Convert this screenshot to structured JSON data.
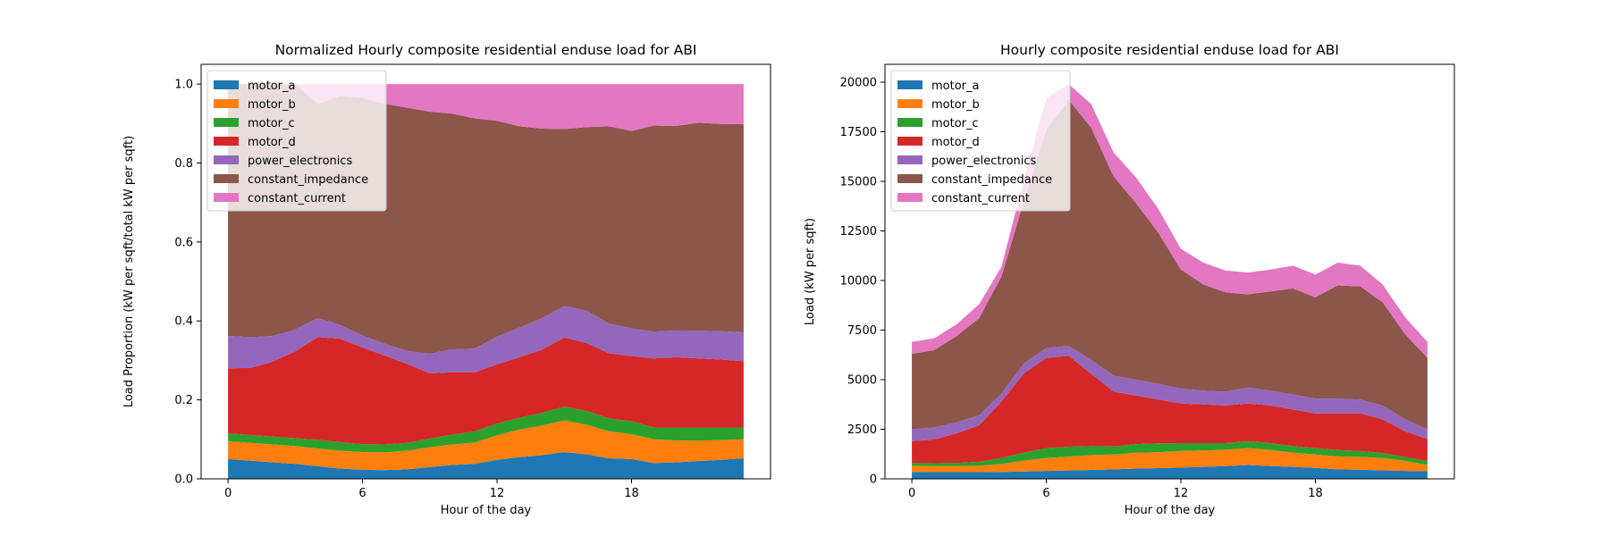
{
  "chart_data": [
    {
      "type": "area",
      "stacked": true,
      "title": "Normalized Hourly composite residential enduse load for ABI",
      "xlabel": "Hour of the day",
      "ylabel": "Load Proportion (kW per sqft/total kW per sqft)",
      "xlim": [
        -1.2,
        24.2
      ],
      "ylim": [
        0,
        1.05
      ],
      "xticks": [
        0,
        6,
        12,
        18
      ],
      "yticks": [
        0.0,
        0.2,
        0.4,
        0.6,
        0.8,
        1.0
      ],
      "ytick_labels": [
        "0.0",
        "0.2",
        "0.4",
        "0.6",
        "0.8",
        "1.0"
      ],
      "legend_position": "top-left",
      "x": [
        0,
        1,
        2,
        3,
        4,
        5,
        6,
        7,
        8,
        9,
        10,
        11,
        12,
        13,
        14,
        15,
        16,
        17,
        18,
        19,
        20,
        21,
        22,
        23
      ],
      "series": [
        {
          "name": "motor_a",
          "color": "#1f77b4",
          "values": [
            0.05,
            0.046,
            0.042,
            0.038,
            0.032,
            0.026,
            0.023,
            0.022,
            0.024,
            0.03,
            0.035,
            0.038,
            0.048,
            0.055,
            0.06,
            0.068,
            0.062,
            0.052,
            0.05,
            0.04,
            0.042,
            0.045,
            0.048,
            0.052
          ]
        },
        {
          "name": "motor_b",
          "color": "#ff7f0e",
          "values": [
            0.045,
            0.045,
            0.045,
            0.045,
            0.045,
            0.045,
            0.045,
            0.045,
            0.047,
            0.05,
            0.052,
            0.054,
            0.062,
            0.07,
            0.075,
            0.08,
            0.075,
            0.068,
            0.063,
            0.06,
            0.055,
            0.052,
            0.05,
            0.048
          ]
        },
        {
          "name": "motor_c",
          "color": "#2ca02c",
          "values": [
            0.02,
            0.02,
            0.02,
            0.02,
            0.022,
            0.022,
            0.02,
            0.02,
            0.02,
            0.022,
            0.025,
            0.028,
            0.03,
            0.03,
            0.032,
            0.035,
            0.035,
            0.033,
            0.033,
            0.03,
            0.033,
            0.033,
            0.032,
            0.03
          ]
        },
        {
          "name": "motor_d",
          "color": "#d62728",
          "values": [
            0.165,
            0.17,
            0.19,
            0.22,
            0.26,
            0.262,
            0.245,
            0.225,
            0.2,
            0.165,
            0.158,
            0.15,
            0.15,
            0.153,
            0.16,
            0.175,
            0.172,
            0.165,
            0.165,
            0.175,
            0.178,
            0.175,
            0.172,
            0.168
          ]
        },
        {
          "name": "power_electronics",
          "color": "#9467bd",
          "values": [
            0.082,
            0.078,
            0.065,
            0.055,
            0.048,
            0.035,
            0.03,
            0.03,
            0.033,
            0.05,
            0.058,
            0.06,
            0.07,
            0.075,
            0.08,
            0.08,
            0.082,
            0.075,
            0.07,
            0.068,
            0.068,
            0.07,
            0.072,
            0.073
          ]
        },
        {
          "name": "constant_impedance",
          "color": "#8c564b",
          "values": [
            0.638,
            0.641,
            0.638,
            0.622,
            0.543,
            0.58,
            0.602,
            0.608,
            0.616,
            0.613,
            0.597,
            0.583,
            0.547,
            0.51,
            0.48,
            0.448,
            0.465,
            0.5,
            0.5,
            0.522,
            0.518,
            0.527,
            0.525,
            0.527
          ]
        },
        {
          "name": "constant_current",
          "color": "#e377c2",
          "values": [
            0.0,
            0.0,
            0.0,
            0.0,
            0.05,
            0.03,
            0.035,
            0.05,
            0.06,
            0.07,
            0.075,
            0.087,
            0.093,
            0.107,
            0.113,
            0.114,
            0.109,
            0.107,
            0.119,
            0.105,
            0.106,
            0.098,
            0.101,
            0.102
          ]
        }
      ]
    },
    {
      "type": "area",
      "stacked": true,
      "title": "Hourly composite residential enduse load for ABI",
      "xlabel": "Hour of the day",
      "ylabel": "Load (kW per sqft)",
      "xlim": [
        -1.2,
        24.2
      ],
      "ylim": [
        0,
        20900
      ],
      "xticks": [
        0,
        6,
        12,
        18
      ],
      "yticks": [
        0,
        2500,
        5000,
        7500,
        10000,
        12500,
        15000,
        17500,
        20000
      ],
      "ytick_labels": [
        "0",
        "2500",
        "5000",
        "7500",
        "10000",
        "12500",
        "15000",
        "17500",
        "20000"
      ],
      "legend_position": "top-left",
      "x": [
        0,
        1,
        2,
        3,
        4,
        5,
        6,
        7,
        8,
        9,
        10,
        11,
        12,
        13,
        14,
        15,
        16,
        17,
        18,
        19,
        20,
        21,
        22,
        23
      ],
      "series": [
        {
          "name": "motor_a",
          "color": "#1f77b4",
          "values": [
            350,
            340,
            340,
            340,
            350,
            370,
            400,
            420,
            450,
            480,
            520,
            540,
            570,
            600,
            640,
            700,
            650,
            600,
            550,
            480,
            460,
            430,
            400,
            380
          ]
        },
        {
          "name": "motor_b",
          "color": "#ff7f0e",
          "values": [
            300,
            300,
            300,
            320,
            400,
            550,
            650,
            700,
            750,
            750,
            800,
            800,
            830,
            830,
            830,
            850,
            800,
            720,
            680,
            650,
            650,
            620,
            500,
            320
          ]
        },
        {
          "name": "motor_c",
          "color": "#2ca02c",
          "values": [
            150,
            150,
            160,
            200,
            300,
            400,
            500,
            500,
            450,
            400,
            430,
            450,
            400,
            370,
            330,
            350,
            350,
            330,
            320,
            320,
            290,
            250,
            200,
            200
          ]
        },
        {
          "name": "motor_d",
          "color": "#d62728",
          "values": [
            1100,
            1200,
            1500,
            1840,
            2850,
            4000,
            4550,
            4580,
            3650,
            2770,
            2450,
            2210,
            2000,
            1950,
            1900,
            1900,
            1900,
            1850,
            1750,
            1850,
            1900,
            1700,
            1300,
            1100
          ]
        },
        {
          "name": "power_electronics",
          "color": "#9467bd",
          "values": [
            600,
            600,
            550,
            500,
            400,
            500,
            500,
            500,
            700,
            800,
            800,
            800,
            750,
            700,
            700,
            800,
            750,
            750,
            750,
            750,
            700,
            700,
            600,
            500
          ]
        },
        {
          "name": "constant_impedance",
          "color": "#8c564b",
          "values": [
            3800,
            3900,
            4350,
            4900,
            5900,
            8200,
            11000,
            12400,
            11700,
            10050,
            8900,
            7600,
            6000,
            5350,
            5000,
            4700,
            5000,
            5350,
            5100,
            5700,
            5700,
            5200,
            4300,
            3600
          ]
        },
        {
          "name": "constant_current",
          "color": "#e377c2",
          "values": [
            600,
            600,
            600,
            700,
            500,
            1080,
            1600,
            800,
            1200,
            1200,
            1300,
            1200,
            1050,
            1100,
            1100,
            1100,
            1100,
            1150,
            1150,
            1150,
            1050,
            900,
            850,
            800
          ]
        }
      ]
    }
  ]
}
